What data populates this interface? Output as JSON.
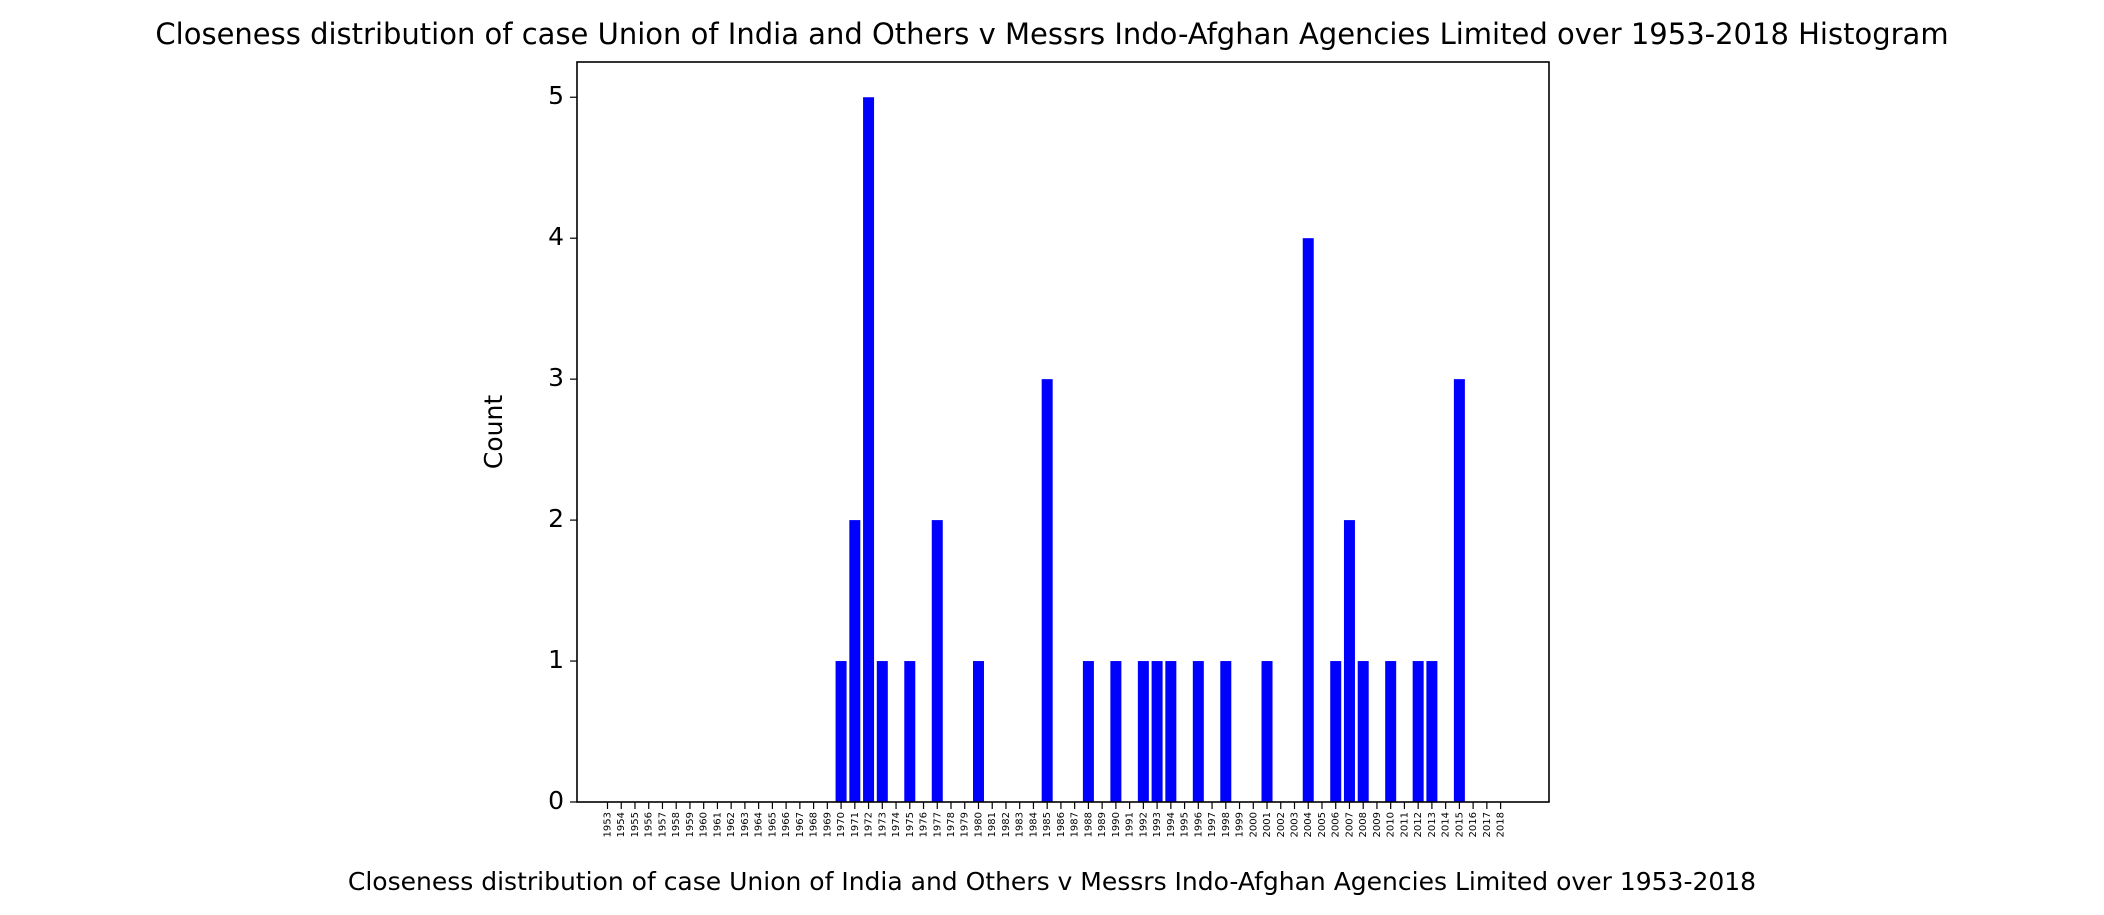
{
  "chart_data": {
    "type": "bar",
    "title": "Closeness distribution of case Union of India and Others v Messrs Indo-Afghan Agencies Limited over 1953-2018 Histogram",
    "xlabel": "Closeness distribution of case Union of India and Others v Messrs Indo-Afghan Agencies Limited over 1953-2018",
    "ylabel": "Count",
    "ylim": [
      0,
      5.25
    ],
    "yticks": [
      0,
      1,
      2,
      3,
      4,
      5
    ],
    "grid": false,
    "bar_color": "#0000ff",
    "categories": [
      "1953",
      "1954",
      "1955",
      "1956",
      "1957",
      "1958",
      "1959",
      "1960",
      "1961",
      "1962",
      "1963",
      "1964",
      "1965",
      "1966",
      "1967",
      "1968",
      "1969",
      "1970",
      "1971",
      "1972",
      "1973",
      "1974",
      "1975",
      "1976",
      "1977",
      "1978",
      "1979",
      "1980",
      "1981",
      "1982",
      "1983",
      "1984",
      "1985",
      "1986",
      "1987",
      "1988",
      "1989",
      "1990",
      "1991",
      "1992",
      "1993",
      "1994",
      "1995",
      "1996",
      "1997",
      "1998",
      "1999",
      "2000",
      "2001",
      "2002",
      "2003",
      "2004",
      "2005",
      "2006",
      "2007",
      "2008",
      "2009",
      "2010",
      "2011",
      "2012",
      "2013",
      "2014",
      "2015",
      "2016",
      "2017",
      "2018"
    ],
    "values": [
      0,
      0,
      0,
      0,
      0,
      0,
      0,
      0,
      0,
      0,
      0,
      0,
      0,
      0,
      0,
      0,
      0,
      1,
      2,
      5,
      1,
      0,
      1,
      0,
      2,
      0,
      0,
      1,
      0,
      0,
      0,
      0,
      3,
      0,
      0,
      1,
      0,
      1,
      0,
      1,
      1,
      1,
      0,
      1,
      0,
      1,
      0,
      0,
      1,
      0,
      0,
      4,
      0,
      1,
      2,
      1,
      0,
      1,
      0,
      1,
      1,
      0,
      3,
      0,
      0,
      0
    ]
  }
}
